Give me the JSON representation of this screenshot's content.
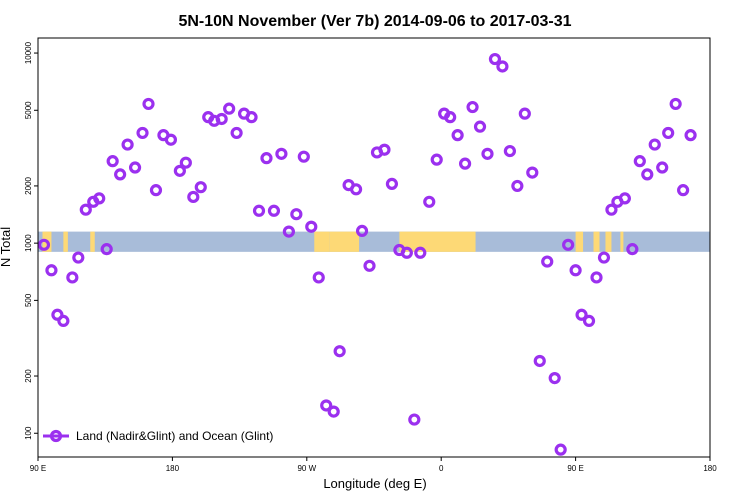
{
  "chart_data": {
    "type": "scatter",
    "title": "5N-10N November (Ver 7b)   2014-09-06 to 2017-03-31",
    "xlabel": "Longitude (deg E)",
    "ylabel": "N Total",
    "x_ticks": [
      {
        "value": 90,
        "label": "90 E"
      },
      {
        "value": 180,
        "label": "180"
      },
      {
        "value": 270,
        "label": "90 W"
      },
      {
        "value": 360,
        "label": "0"
      },
      {
        "value": 450,
        "label": "90 E"
      },
      {
        "value": 540,
        "label": "180"
      }
    ],
    "xlim": [
      90,
      540
    ],
    "y_scale": "log",
    "ylim": [
      75,
      12000
    ],
    "y_ticks": [
      100,
      200,
      500,
      1000,
      2000,
      5000,
      10000
    ],
    "y_tick_labels": [
      "100",
      "200",
      "500",
      "1000",
      "2000",
      "5000",
      "10000"
    ],
    "colors": {
      "series": "#9b30ef",
      "ocean": "#a8bcd9",
      "land": "#fdd976"
    },
    "land_bands": [
      [
        93,
        99
      ],
      [
        107,
        110
      ],
      [
        125,
        128
      ],
      [
        275,
        285
      ],
      [
        285,
        305
      ],
      [
        332,
        383
      ],
      [
        450,
        455
      ],
      [
        462,
        466
      ],
      [
        470,
        474
      ],
      [
        480,
        482
      ]
    ],
    "band_range": [
      900,
      1150
    ],
    "series": [
      {
        "name": "Land (Nadir&Glint) and Ocean (Glint)",
        "points": [
          [
            94,
            980
          ],
          [
            99,
            720
          ],
          [
            103,
            420
          ],
          [
            107,
            390
          ],
          [
            113,
            660
          ],
          [
            117,
            840
          ],
          [
            122,
            1500
          ],
          [
            127,
            1650
          ],
          [
            131,
            1720
          ],
          [
            136,
            930
          ],
          [
            140,
            2700
          ],
          [
            145,
            2300
          ],
          [
            150,
            3300
          ],
          [
            155,
            2500
          ],
          [
            160,
            3800
          ],
          [
            164,
            5400
          ],
          [
            169,
            1900
          ],
          [
            174,
            3700
          ],
          [
            179,
            3500
          ],
          [
            185,
            2400
          ],
          [
            189,
            2650
          ],
          [
            194,
            1750
          ],
          [
            199,
            1970
          ],
          [
            204,
            4600
          ],
          [
            208,
            4400
          ],
          [
            213,
            4500
          ],
          [
            218,
            5100
          ],
          [
            223,
            3800
          ],
          [
            228,
            4800
          ],
          [
            233,
            4600
          ],
          [
            238,
            1480
          ],
          [
            243,
            2800
          ],
          [
            248,
            1480
          ],
          [
            253,
            2950
          ],
          [
            258,
            1150
          ],
          [
            263,
            1420
          ],
          [
            268,
            2850
          ],
          [
            273,
            1220
          ],
          [
            278,
            660
          ],
          [
            283,
            140
          ],
          [
            288,
            130
          ],
          [
            292,
            270
          ],
          [
            298,
            2020
          ],
          [
            303,
            1920
          ],
          [
            307,
            1160
          ],
          [
            312,
            760
          ],
          [
            317,
            3000
          ],
          [
            322,
            3100
          ],
          [
            327,
            2050
          ],
          [
            332,
            920
          ],
          [
            337,
            890
          ],
          [
            342,
            118
          ],
          [
            346,
            890
          ],
          [
            352,
            1650
          ],
          [
            357,
            2750
          ],
          [
            362,
            4800
          ],
          [
            366,
            4600
          ],
          [
            371,
            3700
          ],
          [
            376,
            2620
          ],
          [
            381,
            5200
          ],
          [
            386,
            4100
          ],
          [
            391,
            2950
          ],
          [
            396,
            9300
          ],
          [
            401,
            8500
          ],
          [
            406,
            3050
          ],
          [
            411,
            2000
          ],
          [
            416,
            4800
          ],
          [
            421,
            2350
          ],
          [
            426,
            240
          ],
          [
            431,
            800
          ],
          [
            436,
            195
          ],
          [
            440,
            82
          ],
          [
            445,
            980
          ],
          [
            450,
            720
          ],
          [
            454,
            420
          ],
          [
            459,
            390
          ],
          [
            464,
            660
          ],
          [
            469,
            840
          ],
          [
            474,
            1500
          ],
          [
            478,
            1650
          ],
          [
            483,
            1720
          ],
          [
            488,
            930
          ],
          [
            493,
            2700
          ],
          [
            498,
            2300
          ],
          [
            503,
            3300
          ],
          [
            508,
            2500
          ],
          [
            512,
            3800
          ],
          [
            517,
            5400
          ],
          [
            522,
            1900
          ],
          [
            527,
            3700
          ]
        ]
      }
    ],
    "legend": {
      "position": "bottom-left"
    }
  }
}
